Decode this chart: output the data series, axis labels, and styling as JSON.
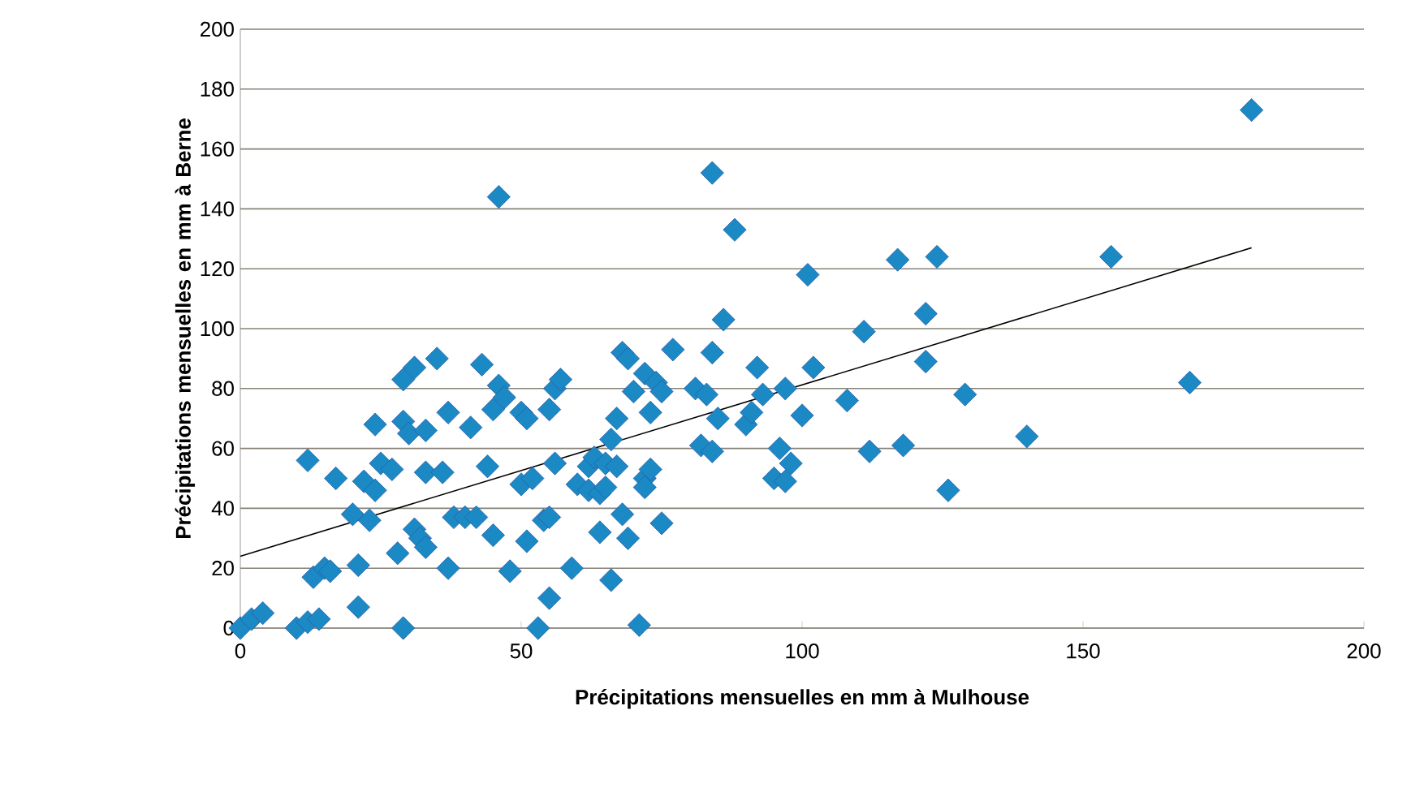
{
  "chart_data": {
    "type": "scatter",
    "xlabel": "Précipitations mensuelles en mm à Mulhouse",
    "ylabel": "Précipitations mensuelles en mm à Berne",
    "xlim": [
      0,
      200
    ],
    "ylim": [
      0,
      200
    ],
    "xticks": [
      0,
      50,
      100,
      150,
      200
    ],
    "yticks": [
      0,
      20,
      40,
      60,
      80,
      100,
      120,
      140,
      160,
      180,
      200
    ],
    "grid": "y",
    "marker": "diamond",
    "series": [
      {
        "color": "#1b8ac4",
        "x": [
          0,
          2,
          4,
          10,
          12,
          13,
          14,
          12,
          15,
          17,
          16,
          20,
          21,
          21,
          22,
          23,
          24,
          24,
          25,
          27,
          28,
          29,
          29,
          29,
          30,
          31,
          31,
          32,
          33,
          33,
          33,
          35,
          36,
          37,
          37,
          38,
          40,
          41,
          42,
          43,
          44,
          45,
          45,
          46,
          46,
          47,
          48,
          50,
          50,
          51,
          51,
          52,
          53,
          54,
          55,
          55,
          55,
          56,
          56,
          57,
          59,
          60,
          62,
          62,
          63,
          64,
          64,
          65,
          65,
          66,
          66,
          67,
          67,
          68,
          68,
          69,
          69,
          70,
          71,
          72,
          72,
          72,
          73,
          73,
          74,
          75,
          75,
          77,
          81,
          82,
          83,
          84,
          84,
          84,
          85,
          86,
          88,
          90,
          91,
          92,
          93,
          95,
          96,
          97,
          97,
          98,
          100,
          101,
          102,
          108,
          111,
          112,
          117,
          118,
          122,
          122,
          124,
          126,
          129,
          140,
          155,
          169,
          180
        ],
        "values": [
          0,
          3,
          5,
          0,
          2,
          17,
          3,
          56,
          20,
          50,
          19,
          38,
          7,
          21,
          49,
          36,
          68,
          46,
          55,
          53,
          25,
          69,
          83,
          0,
          65,
          87,
          33,
          30,
          52,
          27,
          66,
          90,
          52,
          72,
          20,
          37,
          37,
          67,
          37,
          88,
          54,
          31,
          73,
          144,
          81,
          77,
          19,
          72,
          48,
          29,
          70,
          50,
          0,
          36,
          10,
          37,
          73,
          55,
          80,
          83,
          20,
          48,
          46,
          54,
          57,
          32,
          45,
          47,
          55,
          16,
          63,
          70,
          54,
          92,
          38,
          30,
          90,
          79,
          1,
          50,
          47,
          85,
          72,
          53,
          82,
          35,
          79,
          93,
          80,
          61,
          78,
          152,
          92,
          59,
          70,
          103,
          133,
          68,
          72,
          87,
          78,
          50,
          60,
          49,
          80,
          55,
          71,
          118,
          87,
          76,
          99,
          59,
          123,
          61,
          105,
          89,
          124,
          46,
          78,
          64,
          124,
          82,
          173
        ]
      },
      {
        "type": "line",
        "color": "#000000",
        "marker": "none",
        "x": [
          0,
          180
        ],
        "values": [
          24,
          127
        ]
      }
    ]
  }
}
